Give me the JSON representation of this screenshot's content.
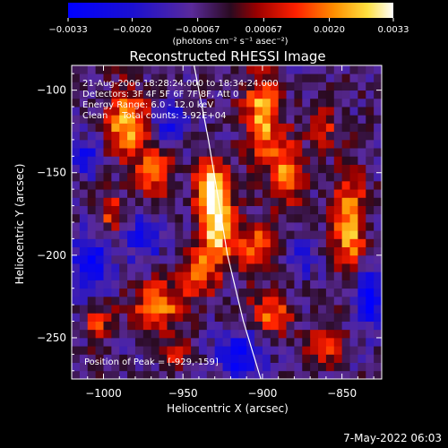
{
  "chart_data": {
    "type": "heatmap",
    "title": "Reconstructed RHESSI Image",
    "xlabel": "Heliocentric X (arcsec)",
    "ylabel": "Heliocentric Y (arcsec)",
    "xlim": [
      -1020,
      -825
    ],
    "ylim": [
      -275,
      -85
    ],
    "x_ticks": [
      -1000,
      -950,
      -900,
      -850
    ],
    "y_ticks": [
      -100,
      -150,
      -200,
      -250
    ],
    "x_tick_labels": [
      "−1000",
      "−950",
      "−900",
      "−850"
    ],
    "y_tick_labels": [
      "−100",
      "−150",
      "−200",
      "−250"
    ],
    "colorbar": {
      "range": [
        -0.0033,
        0.0033
      ],
      "ticks": [
        -0.0033,
        -0.002,
        -0.00067,
        0.00067,
        0.002,
        0.0033
      ],
      "tick_labels": [
        "−0.0033",
        "−0.0020",
        "−0.00067",
        "0.00067",
        "0.0020",
        "0.0033"
      ],
      "unit_label": "(photons cm⁻² s⁻¹ asec⁻²)"
    },
    "annotations": {
      "time_range": "21-Aug-2006 18:28:24.000 to 18:34:24.000",
      "detectors": "Detectors: 3F 4F 5F 6F 7F 8F, Att 0",
      "energy_range": "Energy Range: 6.0 - 12.0 keV",
      "clean_counts": "Clean     Total counts: 3.92E+04",
      "peak_position": "Position of Peak = [-929,-159]"
    },
    "peak": [
      -929,
      -159
    ],
    "limb_curve": [
      [
        -943,
        -85
      ],
      [
        -934,
        -130
      ],
      [
        -929,
        -159
      ],
      [
        -922,
        -200
      ],
      [
        -912,
        -240
      ],
      [
        -901,
        -275
      ]
    ],
    "hot_spots": [
      {
        "x": -932,
        "y": -160,
        "sx": 7,
        "sy": 12,
        "amp": 1.0
      },
      {
        "x": -928,
        "y": -185,
        "sx": 7,
        "sy": 14,
        "amp": 0.8
      },
      {
        "x": -940,
        "y": -210,
        "sx": 8,
        "sy": 10,
        "amp": 0.55
      },
      {
        "x": -985,
        "y": -120,
        "sx": 10,
        "sy": 14,
        "amp": 0.75
      },
      {
        "x": -968,
        "y": -150,
        "sx": 8,
        "sy": 10,
        "amp": 0.6
      },
      {
        "x": -995,
        "y": -175,
        "sx": 6,
        "sy": 8,
        "amp": 0.5
      },
      {
        "x": -900,
        "y": -115,
        "sx": 8,
        "sy": 18,
        "amp": 0.75
      },
      {
        "x": -885,
        "y": -150,
        "sx": 7,
        "sy": 14,
        "amp": 0.65
      },
      {
        "x": -905,
        "y": -195,
        "sx": 8,
        "sy": 12,
        "amp": 0.55
      },
      {
        "x": -895,
        "y": -235,
        "sx": 9,
        "sy": 9,
        "amp": 0.55
      },
      {
        "x": -845,
        "y": -180,
        "sx": 7,
        "sy": 22,
        "amp": 0.75
      },
      {
        "x": -862,
        "y": -120,
        "sx": 6,
        "sy": 10,
        "amp": 0.45
      },
      {
        "x": -965,
        "y": -230,
        "sx": 12,
        "sy": 10,
        "amp": 0.6
      },
      {
        "x": -1003,
        "y": -240,
        "sx": 6,
        "sy": 8,
        "amp": 0.5
      },
      {
        "x": -860,
        "y": -255,
        "sx": 8,
        "sy": 8,
        "amp": 0.45
      },
      {
        "x": -955,
        "y": -260,
        "sx": 6,
        "sy": 6,
        "amp": 0.4
      }
    ],
    "cold_spots": [
      {
        "x": -1008,
        "y": -205,
        "sx": 8,
        "sy": 12,
        "amp": 0.7
      },
      {
        "x": -958,
        "y": -120,
        "sx": 8,
        "sy": 8,
        "amp": 0.45
      },
      {
        "x": -915,
        "y": -260,
        "sx": 10,
        "sy": 10,
        "amp": 0.6
      },
      {
        "x": -833,
        "y": -225,
        "sx": 6,
        "sy": 12,
        "amp": 0.7
      },
      {
        "x": -975,
        "y": -190,
        "sx": 8,
        "sy": 10,
        "amp": 0.45
      },
      {
        "x": -1010,
        "y": -140,
        "sx": 7,
        "sy": 8,
        "amp": 0.45
      },
      {
        "x": -875,
        "y": -200,
        "sx": 6,
        "sy": 8,
        "amp": 0.4
      }
    ]
  },
  "footer": {
    "timestamp": "7-May-2022 06:03"
  }
}
